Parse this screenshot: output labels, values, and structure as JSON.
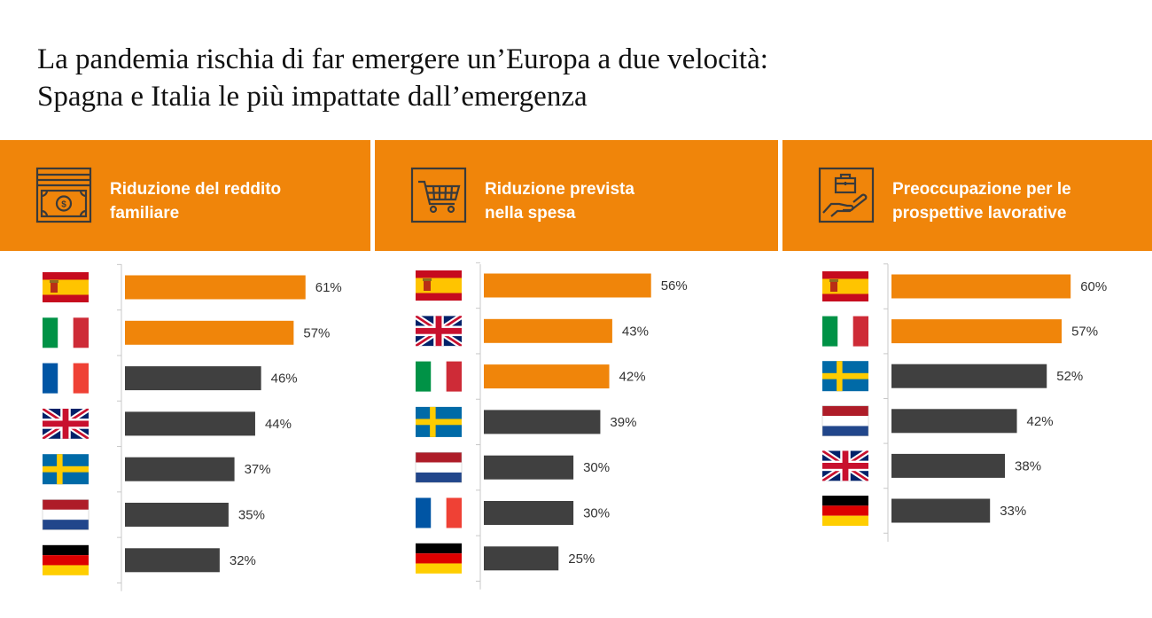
{
  "title": {
    "line1": "La pandemia rischia di far emergere un’Europa a due velocità:",
    "line2": "Spagna e Italia le più impattate dall’emergenza"
  },
  "colors": {
    "highlight": "#f0850a",
    "other": "#404040",
    "header_bg": "#f0850a"
  },
  "chart_data": [
    {
      "type": "bar",
      "orientation": "horizontal",
      "header": {
        "line1": "Riduzione del reddito",
        "line2": "familiare"
      },
      "header_icon": "money-icon",
      "categories": [
        "es",
        "it",
        "fr",
        "gb",
        "se",
        "nl",
        "de"
      ],
      "values": [
        61,
        57,
        46,
        44,
        37,
        35,
        32
      ],
      "value_labels": [
        "61%",
        "57%",
        "46%",
        "44%",
        "37%",
        "35%",
        "32%"
      ],
      "highlighted": [
        true,
        true,
        false,
        false,
        false,
        false,
        false
      ]
    },
    {
      "type": "bar",
      "orientation": "horizontal",
      "header": {
        "line1": "Riduzione prevista",
        "line2": "nella spesa"
      },
      "header_icon": "shopping-cart-icon",
      "categories": [
        "es",
        "gb",
        "it",
        "se",
        "nl",
        "fr",
        "de"
      ],
      "values": [
        56,
        43,
        42,
        39,
        30,
        30,
        25
      ],
      "value_labels": [
        "56%",
        "43%",
        "42%",
        "39%",
        "30%",
        "30%",
        "25%"
      ],
      "highlighted": [
        true,
        true,
        true,
        false,
        false,
        false,
        false
      ]
    },
    {
      "type": "bar",
      "orientation": "horizontal",
      "header": {
        "line1": "Preoccupazione per le",
        "line2": "prospettive lavorative"
      },
      "header_icon": "briefcase-hand-icon",
      "categories": [
        "es",
        "it",
        "se",
        "nl",
        "gb",
        "de"
      ],
      "values": [
        60,
        57,
        52,
        42,
        38,
        33
      ],
      "value_labels": [
        "60%",
        "57%",
        "52%",
        "42%",
        "38%",
        "33%"
      ],
      "highlighted": [
        true,
        true,
        false,
        false,
        false,
        false
      ]
    }
  ]
}
